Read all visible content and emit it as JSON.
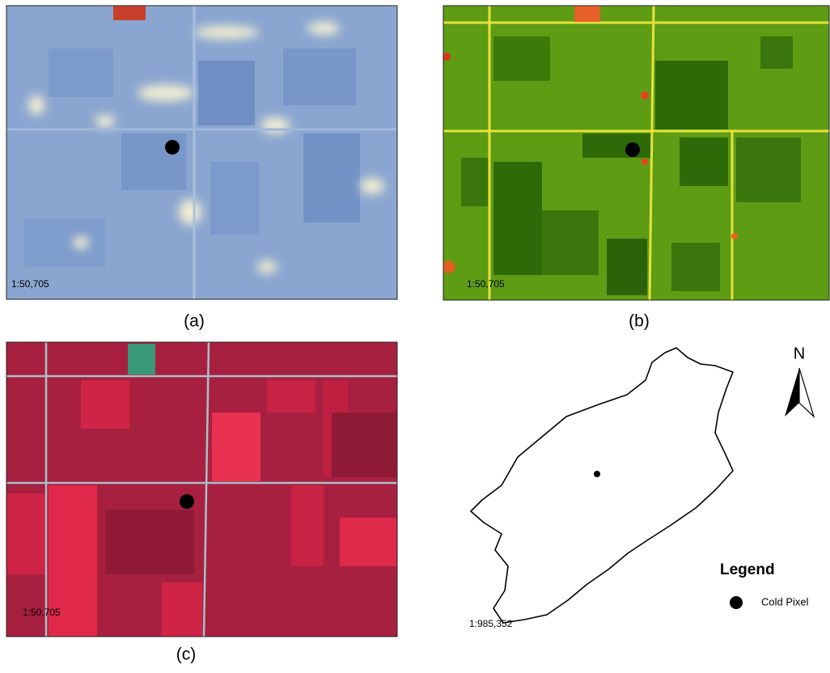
{
  "panels": [
    {
      "label": "(a)",
      "scale": "1:50,705"
    },
    {
      "label": "(b)",
      "scale": "1:50,705"
    },
    {
      "label": "(c)",
      "scale": "1:50,705"
    }
  ],
  "overview": {
    "scale": "1:985,352",
    "north": "N",
    "legend": {
      "title": "Legend",
      "items": [
        "Cold Pixel"
      ]
    }
  }
}
